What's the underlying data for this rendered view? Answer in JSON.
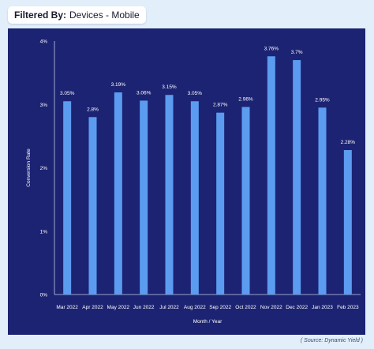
{
  "filter": {
    "label": "Filtered By:",
    "value": "Devices - Mobile"
  },
  "colors": {
    "background": "#e2effa",
    "panel": "#1c2372",
    "bar": "#5b9cf0",
    "text": "#ffffff"
  },
  "chart_data": {
    "type": "bar",
    "categories": [
      "Mar 2022",
      "Apr 2022",
      "May 2022",
      "Jun 2022",
      "Jul 2022",
      "Aug 2022",
      "Sep 2022",
      "Oct 2022",
      "Nov 2022",
      "Dec 2022",
      "Jan 2023",
      "Feb 2023"
    ],
    "values": [
      3.05,
      2.8,
      3.19,
      3.06,
      3.15,
      3.05,
      2.87,
      2.96,
      3.76,
      3.7,
      2.95,
      2.28
    ],
    "data_labels": [
      "3.05%",
      "2.8%",
      "3.19%",
      "3.06%",
      "3.15%",
      "3.05%",
      "2.87%",
      "2.96%",
      "3.76%",
      "3.7%",
      "2.95%",
      "2.28%"
    ],
    "title": "",
    "xlabel": "Month / Year",
    "ylabel": "Conversion Rate",
    "ylim": [
      0,
      4
    ],
    "yticks": [
      0,
      1,
      2,
      3,
      4
    ],
    "ytick_labels": [
      "0%",
      "1%",
      "2%",
      "3%",
      "4%"
    ],
    "grid": false,
    "legend": "none"
  },
  "source": "( Source: Dynamic Yield )"
}
